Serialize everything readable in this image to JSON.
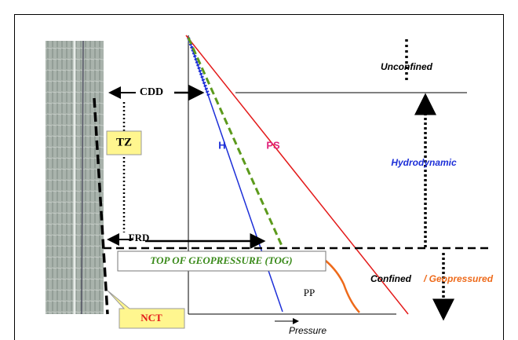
{
  "labels": {
    "cdd": "CDD",
    "tz": "TZ",
    "frd": "FRD",
    "h": "H",
    "ps": "PS",
    "unconfined": "Unconfined",
    "hydrodynamic": "Hydrodynamic",
    "tog": "TOP OF GEOPRESSURE (TOG)",
    "confined": "Confined",
    "geopressured": "/ Geopressured",
    "pp": "PP",
    "pressure": "Pressure",
    "nct": "NCT"
  }
}
